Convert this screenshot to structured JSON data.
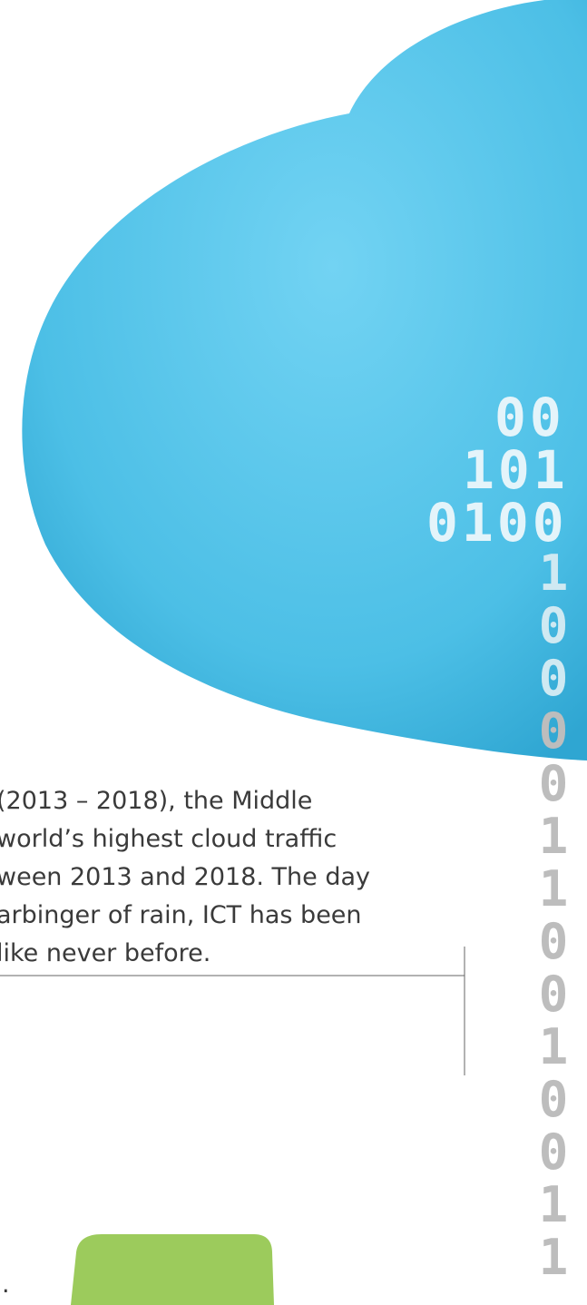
{
  "cloud_digits": [
    "00",
    "101",
    "0100"
  ],
  "trail_digits": [
    "1",
    "0",
    "0",
    "0",
    "0",
    "1",
    "1",
    "0",
    "0",
    "1",
    "0",
    "0",
    "1",
    "1"
  ],
  "paragraph_lines": [
    "(2013 – 2018), the Middle",
    "world’s highest cloud traffic",
    "ween 2013 and 2018. The day",
    "arbinger of rain, ICT has been",
    "like never before."
  ],
  "footer_mark": "."
}
